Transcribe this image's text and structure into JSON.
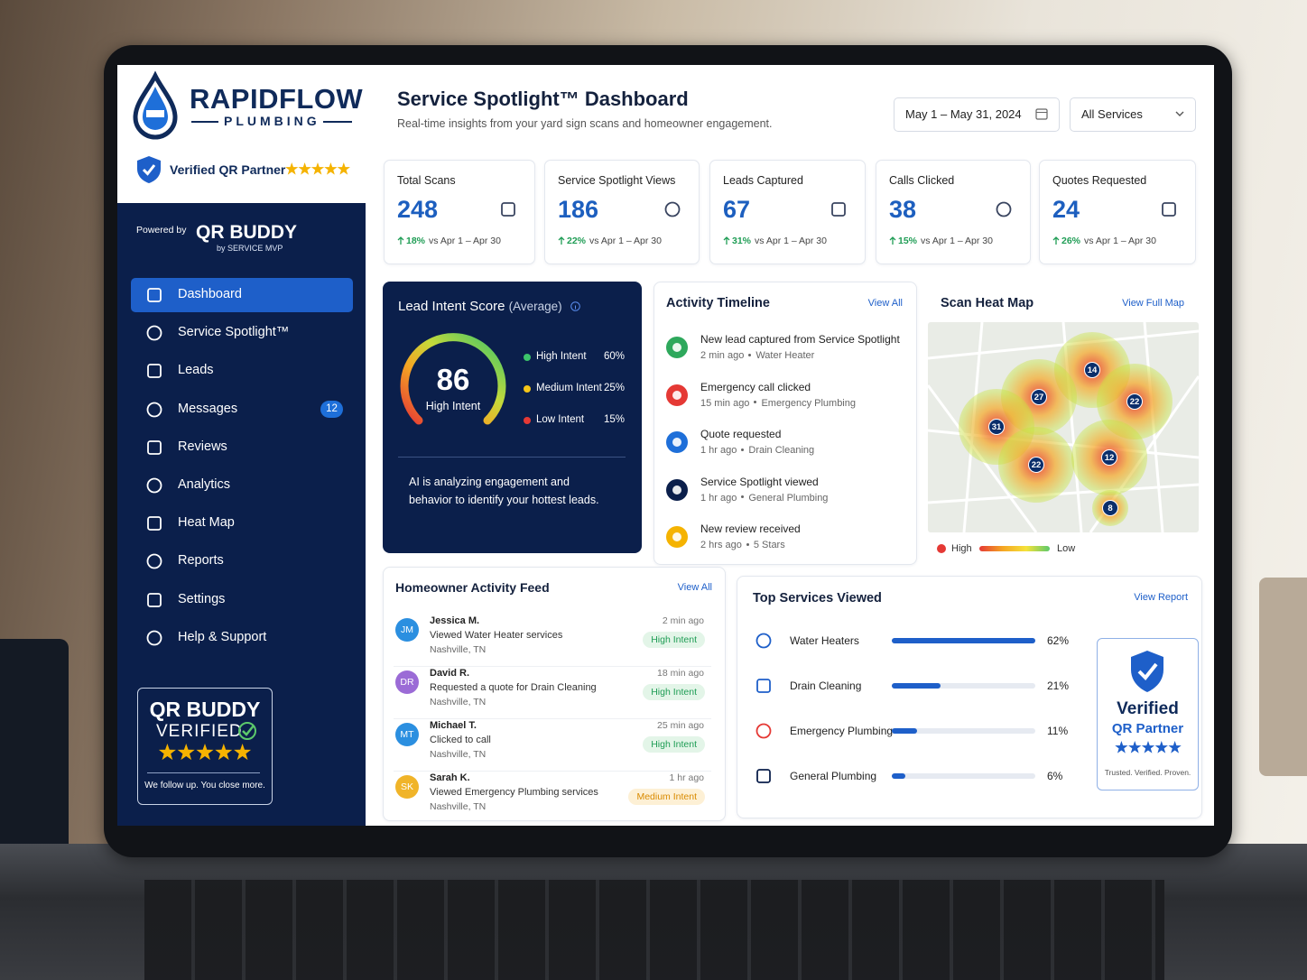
{
  "brand": {
    "name": "RAPIDFLOW",
    "sub": "PLUMBING",
    "badge": "Verified QR Partner"
  },
  "powered": {
    "label": "Powered by",
    "name": "QR BUDDY",
    "by": "by SERVICE MVP"
  },
  "nav": [
    {
      "label": "Dashboard"
    },
    {
      "label": "Service Spotlight™"
    },
    {
      "label": "Leads"
    },
    {
      "label": "Messages",
      "badge": "12"
    },
    {
      "label": "Reviews"
    },
    {
      "label": "Analytics"
    },
    {
      "label": "Heat Map"
    },
    {
      "label": "Reports"
    },
    {
      "label": "Settings"
    },
    {
      "label": "Help & Support"
    }
  ],
  "sidebar_badge": {
    "title": "QR BUDDY",
    "verified": "VERIFIED",
    "tagline": "We follow up. You close more."
  },
  "header": {
    "title": "Service Spotlight™ Dashboard",
    "subtitle": "Real-time insights from your yard sign scans and homeowner engagement.",
    "date_range": "May 1 – May 31, 2024",
    "filter": "All Services"
  },
  "kpis": [
    {
      "label": "Total Scans",
      "value": "248",
      "change": "18%",
      "compare": "vs Apr 1 – Apr 30"
    },
    {
      "label": "Service Spotlight Views",
      "value": "186",
      "change": "22%",
      "compare": "vs Apr 1 – Apr 30"
    },
    {
      "label": "Leads Captured",
      "value": "67",
      "change": "31%",
      "compare": "vs Apr 1 – Apr 30"
    },
    {
      "label": "Calls Clicked",
      "value": "38",
      "change": "15%",
      "compare": "vs Apr 1 – Apr 30"
    },
    {
      "label": "Quotes Requested",
      "value": "24",
      "change": "26%",
      "compare": "vs Apr 1 – Apr 30"
    }
  ],
  "lead_intent": {
    "title": "Lead Intent Score",
    "qualifier": "(Average)",
    "score": "86",
    "score_label": "High Intent",
    "breakdown": [
      {
        "label": "High Intent",
        "pct": "60%"
      },
      {
        "label": "Medium Intent",
        "pct": "25%"
      },
      {
        "label": "Low Intent",
        "pct": "15%"
      }
    ],
    "note": "AI is analyzing engagement and behavior to identify your hottest leads."
  },
  "activity": {
    "title": "Activity Timeline",
    "link": "View All",
    "items": [
      {
        "title": "New lead captured from Service Spotlight",
        "time": "2 min ago",
        "detail": "Water Heater"
      },
      {
        "title": "Emergency call clicked",
        "time": "15 min ago",
        "detail": "Emergency Plumbing"
      },
      {
        "title": "Quote requested",
        "time": "1 hr ago",
        "detail": "Drain Cleaning"
      },
      {
        "title": "Service Spotlight viewed",
        "time": "1 hr ago",
        "detail": "General Plumbing"
      },
      {
        "title": "New review received",
        "time": "2 hrs ago",
        "detail": "5 Stars"
      }
    ]
  },
  "heat_map": {
    "title": "Scan Heat Map",
    "link": "View Full Map",
    "points": [
      "14",
      "27",
      "22",
      "31",
      "22",
      "12",
      "8"
    ],
    "legend_high": "High",
    "legend_low": "Low"
  },
  "feed": {
    "title": "Homeowner Activity Feed",
    "link": "View All",
    "items": [
      {
        "initials": "JM",
        "name": "Jessica M.",
        "action": "Viewed Water Heater services",
        "location": "Nashville, TN",
        "time": "2 min ago",
        "intent": "High Intent"
      },
      {
        "initials": "DR",
        "name": "David R.",
        "action": "Requested a quote for Drain Cleaning",
        "location": "Nashville, TN",
        "time": "18 min ago",
        "intent": "High Intent"
      },
      {
        "initials": "MT",
        "name": "Michael T.",
        "action": "Clicked to call",
        "location": "Nashville, TN",
        "time": "25 min ago",
        "intent": "High Intent"
      },
      {
        "initials": "SK",
        "name": "Sarah K.",
        "action": "Viewed Emergency Plumbing services",
        "location": "Nashville, TN",
        "time": "1 hr ago",
        "intent": "Medium Intent"
      }
    ]
  },
  "top_services": {
    "title": "Top Services Viewed",
    "link": "View Report",
    "items": [
      {
        "name": "Water Heaters",
        "value": 62,
        "label": "62%"
      },
      {
        "name": "Drain Cleaning",
        "value": 21,
        "label": "21%"
      },
      {
        "name": "Emergency Plumbing",
        "value": 11,
        "label": "11%"
      },
      {
        "name": "General Plumbing",
        "value": 6,
        "label": "6%"
      }
    ]
  },
  "partner_card": {
    "title": "Verified",
    "subtitle": "QR Partner",
    "tagline": "Trusted. Verified. Proven."
  }
}
